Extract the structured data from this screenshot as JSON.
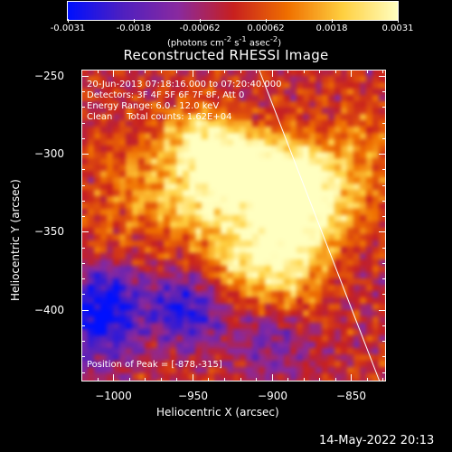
{
  "chart_data": {
    "type": "heatmap",
    "title": "Reconstructed RHESSI Image",
    "xlabel": "Heliocentric X (arcsec)",
    "ylabel": "Heliocentric Y (arcsec)",
    "xlim": [
      -1020,
      -828
    ],
    "ylim": [
      -446,
      -246
    ],
    "x_ticks": [
      -1000,
      -950,
      -900,
      -850
    ],
    "y_ticks": [
      -250,
      -300,
      -350,
      -400
    ],
    "colorbar": {
      "min": -0.0031,
      "max": 0.0031,
      "ticks": [
        "-0.0031",
        "-0.0018",
        "-0.00062",
        "0.00062",
        "0.0018",
        "0.0031"
      ],
      "label_html": "(photons cm<sup>-2</sup> s<sup>-1</sup> asec<sup>-2</sup>)",
      "colors": [
        "#0010ff",
        "#5020c0",
        "#8a2aa0",
        "#c82020",
        "#f07000",
        "#ffd040",
        "#ffffc0"
      ]
    },
    "annotations": [
      "20-Jun-2013 07:18:16.000 to 07:20:40.000",
      "Detectors: 3F 4F 5F 6F 7F 8F, Att 0",
      "Energy Range: 6.0 - 12.0 keV",
      "Clean     Total counts: 1.62E+04"
    ],
    "peak_label": "Position of Peak = [-878,-315]",
    "peak": [
      -878,
      -315
    ],
    "limb_line": [
      [
        -908,
        -246
      ],
      [
        -832,
        -446
      ]
    ],
    "bright_regions": [
      {
        "x": -950,
        "y": -290,
        "intensity": 0.7
      },
      {
        "x": -930,
        "y": -305,
        "intensity": 0.95
      },
      {
        "x": -905,
        "y": -310,
        "intensity": 0.85
      },
      {
        "x": -878,
        "y": -315,
        "intensity": 1.0
      },
      {
        "x": -900,
        "y": -340,
        "intensity": 0.8
      },
      {
        "x": -880,
        "y": -350,
        "intensity": 0.75
      },
      {
        "x": -940,
        "y": -335,
        "intensity": 0.65
      },
      {
        "x": -920,
        "y": -370,
        "intensity": 0.7
      },
      {
        "x": -890,
        "y": -380,
        "intensity": 0.6
      },
      {
        "x": -965,
        "y": -330,
        "intensity": 0.4
      },
      {
        "x": -990,
        "y": -310,
        "intensity": 0.35
      },
      {
        "x": -1000,
        "y": -350,
        "intensity": 0.2
      },
      {
        "x": -850,
        "y": -330,
        "intensity": 0.45
      },
      {
        "x": -840,
        "y": -290,
        "intensity": 0.35
      },
      {
        "x": -960,
        "y": -395,
        "intensity": 0.15
      }
    ],
    "dim_regions": [
      {
        "x": -1005,
        "y": -395,
        "intensity": -0.9
      },
      {
        "x": -955,
        "y": -400,
        "intensity": -1.0
      },
      {
        "x": -1010,
        "y": -420,
        "intensity": -0.5
      },
      {
        "x": -900,
        "y": -420,
        "intensity": -0.4
      }
    ]
  },
  "footer": {
    "timestamp": "14-May-2022 20:13"
  }
}
